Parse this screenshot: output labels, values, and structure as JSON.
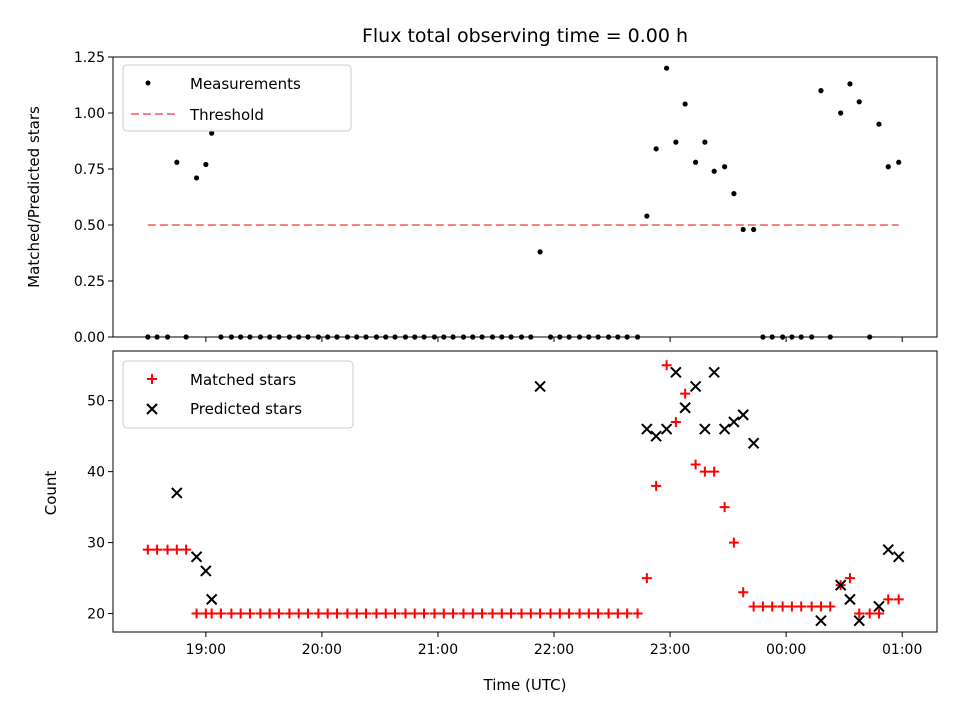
{
  "chart_data": [
    {
      "type": "scatter",
      "title": "Flux total observing time = 0.00 h",
      "xlabel": "",
      "ylabel": "Matched/Predicted stars",
      "ylim": [
        0,
        1.25
      ],
      "yticks": [
        "0.00",
        "0.25",
        "0.50",
        "0.75",
        "1.00",
        "1.25"
      ],
      "ytick_values": [
        0,
        0.25,
        0.5,
        0.75,
        1.0,
        1.25
      ],
      "legend_placement": "upper-left",
      "series": [
        {
          "name": "Measurements",
          "marker": "dot",
          "color": "#000000",
          "x": [
            18.5,
            18.58,
            18.67,
            18.75,
            18.83,
            18.92,
            19.0,
            19.05,
            19.13,
            19.22,
            19.3,
            19.38,
            19.47,
            19.55,
            19.63,
            19.72,
            19.8,
            19.88,
            19.97,
            20.05,
            20.13,
            20.22,
            20.3,
            20.38,
            20.47,
            20.55,
            20.63,
            20.72,
            20.8,
            20.88,
            20.97,
            21.05,
            21.13,
            21.22,
            21.3,
            21.38,
            21.47,
            21.55,
            21.63,
            21.72,
            21.8,
            21.88,
            21.97,
            22.05,
            22.13,
            22.22,
            22.3,
            22.38,
            22.47,
            22.55,
            22.63,
            22.72,
            22.8,
            22.88,
            22.97,
            23.05,
            23.13,
            23.22,
            23.3,
            23.38,
            23.47,
            23.55,
            23.63,
            23.72,
            23.8,
            23.88,
            23.97,
            24.05,
            24.13,
            24.22,
            24.3,
            24.38,
            24.47,
            24.55,
            24.63,
            24.72,
            24.8,
            24.88,
            24.97
          ],
          "y": [
            0,
            0,
            0,
            0.78,
            0,
            0.71,
            0.77,
            0.91,
            0,
            0,
            0,
            0,
            0,
            0,
            0,
            0,
            0,
            0,
            0,
            0,
            0,
            0,
            0,
            0,
            0,
            0,
            0,
            0,
            0,
            0,
            0,
            0,
            0,
            0,
            0,
            0,
            0,
            0,
            0,
            0,
            0,
            0.38,
            0,
            0,
            0,
            0,
            0,
            0,
            0,
            0,
            0,
            0,
            0.54,
            0.84,
            1.2,
            0.87,
            1.04,
            0.78,
            0.87,
            0.74,
            0.76,
            0.64,
            0.48,
            0.48,
            0,
            0,
            0,
            0,
            0,
            0,
            1.1,
            0,
            1.0,
            1.13,
            1.05,
            0,
            0.95,
            0.76,
            0.78
          ]
        },
        {
          "name": "Threshold",
          "marker": "dashed-line",
          "color": "#ff7f7f",
          "x": [
            18.5,
            24.97
          ],
          "y": [
            0.5,
            0.5
          ]
        }
      ]
    },
    {
      "type": "scatter",
      "title": "",
      "xlabel": "Time (UTC)",
      "ylabel": "Count",
      "ylim": [
        17.4,
        57
      ],
      "yticks": [
        "20",
        "30",
        "40",
        "50"
      ],
      "ytick_values": [
        20,
        30,
        40,
        50
      ],
      "xlim": [
        18.2,
        25.3
      ],
      "xticks": [
        "19:00",
        "20:00",
        "21:00",
        "22:00",
        "23:00",
        "00:00",
        "01:00"
      ],
      "xtick_values": [
        19,
        20,
        21,
        22,
        23,
        24,
        25
      ],
      "legend_placement": "upper-left",
      "series": [
        {
          "name": "Matched stars",
          "marker": "plus",
          "color": "#ff0000",
          "x": [
            18.5,
            18.58,
            18.67,
            18.75,
            18.83,
            18.92,
            19.0,
            19.05,
            19.13,
            19.22,
            19.3,
            19.38,
            19.47,
            19.55,
            19.63,
            19.72,
            19.8,
            19.88,
            19.97,
            20.05,
            20.13,
            20.22,
            20.3,
            20.38,
            20.47,
            20.55,
            20.63,
            20.72,
            20.8,
            20.88,
            20.97,
            21.05,
            21.13,
            21.22,
            21.3,
            21.38,
            21.47,
            21.55,
            21.63,
            21.72,
            21.8,
            21.88,
            21.97,
            22.05,
            22.13,
            22.22,
            22.3,
            22.38,
            22.47,
            22.55,
            22.63,
            22.72,
            22.8,
            22.88,
            22.97,
            23.05,
            23.13,
            23.22,
            23.3,
            23.38,
            23.47,
            23.55,
            23.63,
            23.72,
            23.8,
            23.88,
            23.97,
            24.05,
            24.13,
            24.22,
            24.3,
            24.38,
            24.47,
            24.55,
            24.63,
            24.72,
            24.8,
            24.88,
            24.97
          ],
          "y": [
            29,
            29,
            29,
            29,
            29,
            20,
            20,
            20,
            20,
            20,
            20,
            20,
            20,
            20,
            20,
            20,
            20,
            20,
            20,
            20,
            20,
            20,
            20,
            20,
            20,
            20,
            20,
            20,
            20,
            20,
            20,
            20,
            20,
            20,
            20,
            20,
            20,
            20,
            20,
            20,
            20,
            20,
            20,
            20,
            20,
            20,
            20,
            20,
            20,
            20,
            20,
            20,
            25,
            38,
            55,
            47,
            51,
            41,
            40,
            40,
            35,
            30,
            23,
            21,
            21,
            21,
            21,
            21,
            21,
            21,
            21,
            21,
            24,
            25,
            20,
            20,
            20,
            22,
            22
          ]
        },
        {
          "name": "Predicted stars",
          "marker": "cross",
          "color": "#000000",
          "x": [
            18.75,
            18.92,
            19.0,
            19.05,
            21.88,
            22.8,
            22.88,
            22.97,
            23.05,
            23.13,
            23.22,
            23.3,
            23.38,
            23.47,
            23.55,
            23.63,
            23.72,
            24.3,
            24.47,
            24.55,
            24.63,
            24.8,
            24.88,
            24.97
          ],
          "y": [
            37,
            28,
            26,
            22,
            52,
            46,
            45,
            46,
            54,
            49,
            52,
            46,
            54,
            46,
            47,
            48,
            44,
            19,
            24,
            22,
            19,
            21,
            29,
            28
          ]
        }
      ]
    }
  ]
}
